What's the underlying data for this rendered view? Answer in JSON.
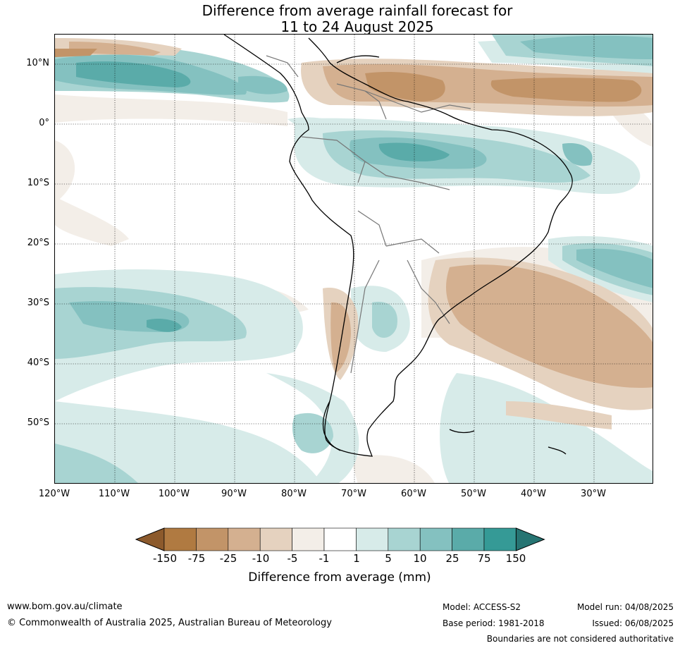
{
  "title": {
    "line1": "Difference from average rainfall forecast for",
    "line2": "11 to 24 August 2025"
  },
  "map": {
    "lat_labels": [
      "10°N",
      "0°",
      "10°S",
      "20°S",
      "30°S",
      "40°S",
      "50°S"
    ],
    "lon_labels": [
      "120°W",
      "110°W",
      "100°W",
      "90°W",
      "80°W",
      "70°W",
      "60°W",
      "50°W",
      "40°W",
      "30°W"
    ]
  },
  "colorbar": {
    "title": "Difference from average (mm)",
    "ticks": [
      "-150",
      "-75",
      "-25",
      "-10",
      "-5",
      "-1",
      "1",
      "5",
      "10",
      "25",
      "75",
      "150"
    ],
    "colors": [
      "#8c5a2c",
      "#b07a41",
      "#c29468",
      "#d4b090",
      "#e5d2bf",
      "#f3eee8",
      "#ffffff",
      "#d7ebe9",
      "#a8d4d2",
      "#84c1c0",
      "#5aaba9",
      "#359a96",
      "#267472"
    ]
  },
  "footer": {
    "website": "www.bom.gov.au/climate",
    "copyright": "© Commonwealth of Australia 2025, Australian Bureau of Meteorology",
    "model": "Model: ACCESS-S2",
    "base_period": "Base period: 1981-2018",
    "model_run": "Model run: 04/08/2025",
    "issued": "Issued: 06/08/2025",
    "disclaimer": "Boundaries are not considered authoritative"
  }
}
